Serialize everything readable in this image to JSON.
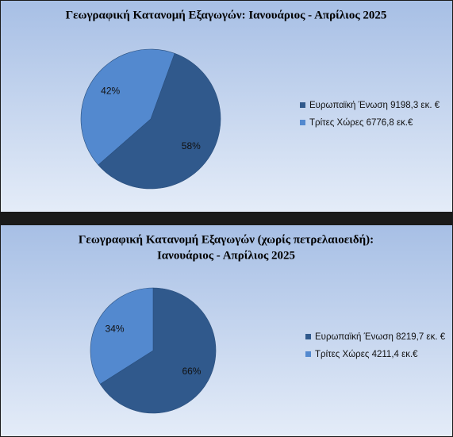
{
  "chart_data": [
    {
      "type": "pie",
      "title": [
        "Γεωγραφική Κατανομή Εξαγωγών: Ιανουάριος - Απρίλιος 2025"
      ],
      "categories": [
        "Ευρωπαϊκή Ένωση 9198,3 εκ. €",
        "Τρίτες Χώρες 6776,8 εκ.€"
      ],
      "values": [
        58,
        42
      ],
      "value_labels": [
        "58%",
        "42%"
      ],
      "colors": [
        "#30598c",
        "#5389cf"
      ],
      "legend": "right"
    },
    {
      "type": "pie",
      "title": [
        "Γεωγραφική Κατανομή Εξαγωγών (χωρίς πετρελαιοειδή):",
        "Ιανουάριος - Απρίλιος 2025"
      ],
      "categories": [
        "Ευρωπαϊκή Ένωση 8219,7 εκ. €",
        "Τρίτες Χώρες 4211,4 εκ.€"
      ],
      "values": [
        66,
        34
      ],
      "value_labels": [
        "66%",
        "34%"
      ],
      "colors": [
        "#30598c",
        "#5389cf"
      ],
      "legend": "right"
    }
  ]
}
